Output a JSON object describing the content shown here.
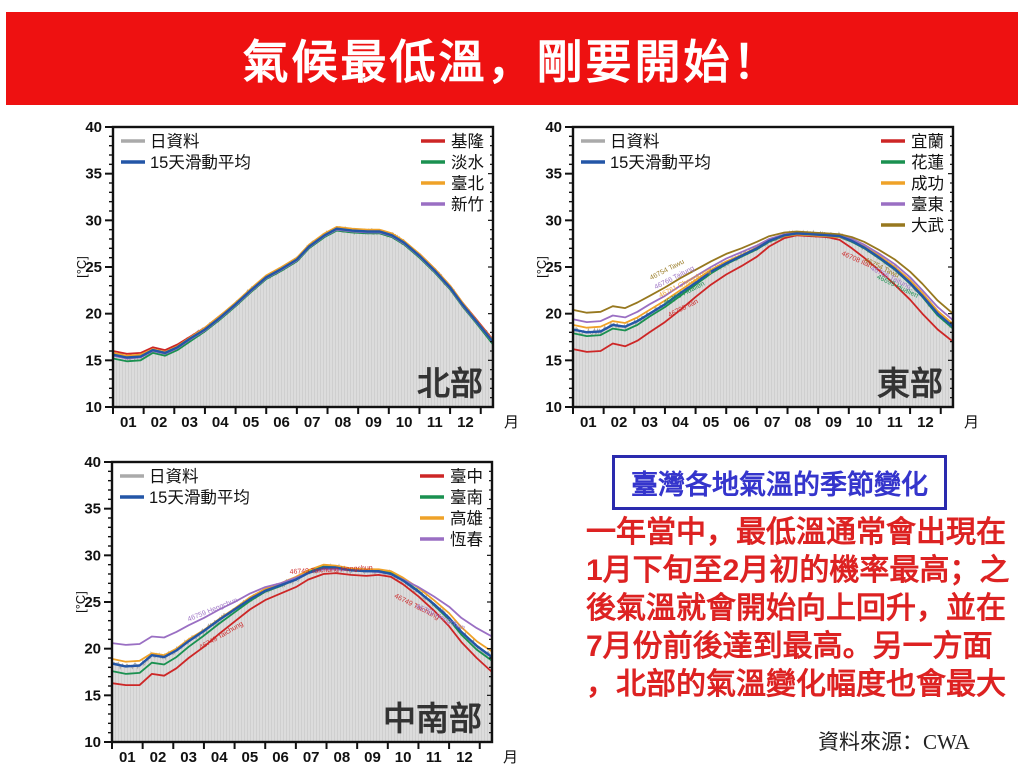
{
  "banner": {
    "title": "氣候最低溫，剛要開始！",
    "bg_color": "#ee1111",
    "fg_color": "#ffffff"
  },
  "info_box": {
    "label": "臺灣各地氣溫的季節變化",
    "border_color": "#2a2aae",
    "fg_color": "#3535cc"
  },
  "description": {
    "text": "一年當中，最低溫通常會出現在1月下旬至2月初的機率最高；之後氣溫就會開始向上回升，並在7月份前後達到最高。另一方面，北部的氣溫變化幅度也會最大",
    "fg_color": "#dd2222"
  },
  "source": {
    "prefix": "資料來源：",
    "value": "CWA"
  },
  "legend_common": [
    {
      "label": "日資料",
      "color": "#aaaaaa"
    },
    {
      "label": "15天滑動平均",
      "color": "#2356a7"
    }
  ],
  "axis": {
    "ylabel": "[°C]",
    "xlabel": "月",
    "yticks": [
      10,
      15,
      20,
      25,
      30,
      35,
      40
    ],
    "xticklabels": [
      "01",
      "02",
      "03",
      "04",
      "05",
      "06",
      "07",
      "08",
      "09",
      "10",
      "11",
      "12"
    ],
    "ylim": [
      10,
      40
    ],
    "xlim": [
      0,
      12.4
    ]
  },
  "colors": {
    "avg": "#2356a7",
    "daily": "#ababab",
    "fill": "#dcdcdc",
    "fill_stripe": "#cfcfcf",
    "frame": "#111111",
    "region_label": "#333333"
  },
  "chart_data": [
    {
      "type": "line",
      "region": "北部",
      "x": [
        0,
        0.45,
        0.9,
        1.3,
        1.7,
        2.1,
        2.5,
        3,
        3.5,
        4,
        4.5,
        5,
        5.5,
        6,
        6.4,
        6.9,
        7.3,
        7.8,
        8.3,
        8.7,
        9.1,
        9.5,
        10,
        10.5,
        11,
        11.4,
        11.9,
        12.4
      ],
      "avg": [
        15.6,
        15.3,
        15.4,
        16.1,
        15.8,
        16.4,
        17.3,
        18.3,
        19.6,
        21.0,
        22.5,
        23.9,
        24.8,
        25.8,
        27.2,
        28.4,
        29.1,
        28.9,
        28.8,
        28.8,
        28.4,
        27.6,
        26.2,
        24.6,
        22.8,
        21.0,
        19.0,
        17.0
      ],
      "series": [
        {
          "name": "基隆",
          "color": "#cd2626",
          "values": [
            16.0,
            15.7,
            15.8,
            16.4,
            16.1,
            16.7,
            17.5,
            18.5,
            19.8,
            21.1,
            22.6,
            24.0,
            24.9,
            25.9,
            27.3,
            28.5,
            29.2,
            29.0,
            28.9,
            28.9,
            28.5,
            27.7,
            26.4,
            24.8,
            23.0,
            21.2,
            19.2,
            17.2
          ]
        },
        {
          "name": "淡水",
          "color": "#1a9150",
          "values": [
            15.2,
            14.9,
            15.0,
            15.8,
            15.5,
            16.1,
            17.0,
            18.1,
            19.4,
            20.8,
            22.3,
            23.7,
            24.6,
            25.6,
            27.0,
            28.2,
            28.9,
            28.7,
            28.6,
            28.6,
            28.2,
            27.4,
            26.0,
            24.4,
            22.6,
            20.8,
            18.8,
            16.7
          ]
        },
        {
          "name": "臺北",
          "color": "#efa228",
          "values": [
            15.8,
            15.5,
            15.6,
            16.2,
            15.9,
            16.5,
            17.4,
            18.5,
            19.8,
            21.2,
            22.7,
            24.1,
            25.0,
            26.0,
            27.4,
            28.6,
            29.3,
            29.1,
            29.0,
            29.0,
            28.6,
            27.8,
            26.4,
            24.8,
            23.0,
            21.2,
            19.1,
            17.1
          ]
        },
        {
          "name": "新竹",
          "color": "#9a6fc3",
          "values": [
            15.5,
            15.2,
            15.3,
            16.0,
            15.7,
            16.3,
            17.2,
            18.2,
            19.5,
            20.9,
            22.4,
            23.8,
            24.7,
            25.7,
            27.1,
            28.3,
            29.0,
            28.8,
            28.7,
            28.7,
            28.3,
            27.5,
            26.1,
            24.5,
            22.7,
            20.9,
            18.9,
            16.9
          ]
        }
      ],
      "annotations": []
    },
    {
      "type": "line",
      "region": "東部",
      "x": [
        0,
        0.45,
        0.9,
        1.3,
        1.7,
        2.1,
        2.5,
        3,
        3.5,
        4,
        4.5,
        5,
        5.5,
        6,
        6.4,
        6.9,
        7.3,
        7.8,
        8.3,
        8.7,
        9.1,
        9.5,
        10,
        10.5,
        11,
        11.4,
        11.9,
        12.4
      ],
      "avg": [
        18.3,
        18.0,
        18.1,
        18.8,
        18.6,
        19.2,
        20.0,
        21.0,
        22.2,
        23.3,
        24.5,
        25.4,
        26.2,
        27.0,
        27.8,
        28.4,
        28.6,
        28.5,
        28.4,
        28.3,
        27.8,
        27.1,
        26.0,
        24.8,
        23.3,
        21.9,
        20.0,
        18.6
      ],
      "series": [
        {
          "name": "宜蘭",
          "color": "#cd2626",
          "values": [
            16.2,
            15.9,
            16.0,
            16.8,
            16.5,
            17.1,
            18.0,
            19.1,
            20.4,
            21.8,
            23.1,
            24.2,
            25.1,
            26.1,
            27.2,
            28.1,
            28.4,
            28.3,
            28.2,
            27.9,
            27.0,
            26.0,
            24.6,
            23.1,
            21.5,
            20.0,
            18.3,
            17.0
          ]
        },
        {
          "name": "花蓮",
          "color": "#1a9150",
          "values": [
            17.9,
            17.6,
            17.7,
            18.4,
            18.2,
            18.8,
            19.7,
            20.7,
            21.9,
            23.1,
            24.3,
            25.3,
            26.1,
            26.9,
            27.7,
            28.3,
            28.5,
            28.4,
            28.3,
            28.2,
            27.7,
            27.0,
            25.9,
            24.7,
            23.2,
            21.8,
            19.8,
            18.4
          ]
        },
        {
          "name": "成功",
          "color": "#efa228",
          "values": [
            18.8,
            18.5,
            18.6,
            19.2,
            19.0,
            19.6,
            20.4,
            21.4,
            22.5,
            23.6,
            24.7,
            25.6,
            26.3,
            27.1,
            27.8,
            28.3,
            28.5,
            28.4,
            28.3,
            28.2,
            27.8,
            27.2,
            26.2,
            25.0,
            23.6,
            22.2,
            20.3,
            18.9
          ]
        },
        {
          "name": "臺東",
          "color": "#9a6fc3",
          "values": [
            19.4,
            19.1,
            19.2,
            19.8,
            19.6,
            20.2,
            21.0,
            21.9,
            23.0,
            24.0,
            25.0,
            25.9,
            26.6,
            27.3,
            28.0,
            28.5,
            28.7,
            28.6,
            28.5,
            28.4,
            28.0,
            27.4,
            26.4,
            25.3,
            23.9,
            22.5,
            20.7,
            19.3
          ]
        },
        {
          "name": "大武",
          "color": "#97781f",
          "values": [
            20.4,
            20.1,
            20.2,
            20.8,
            20.6,
            21.2,
            21.9,
            22.8,
            23.8,
            24.7,
            25.6,
            26.4,
            27.0,
            27.7,
            28.3,
            28.7,
            28.8,
            28.7,
            28.6,
            28.5,
            28.2,
            27.7,
            26.8,
            25.8,
            24.5,
            23.2,
            21.4,
            20.0
          ]
        }
      ],
      "annotations": [
        {
          "text": "46754 Tawu",
          "color": "#97781f",
          "x": 2.55,
          "y": 23.6,
          "rot": -27
        },
        {
          "text": "46766 Taitung",
          "color": "#9a6fc3",
          "x": 2.7,
          "y": 22.6,
          "rot": -27
        },
        {
          "text": "46761 Chengkung",
          "color": "#efa228",
          "x": 2.85,
          "y": 21.7,
          "rot": -27
        },
        {
          "text": "46699 Hualien",
          "color": "#1a9150",
          "x": 3.0,
          "y": 20.9,
          "rot": -27
        },
        {
          "text": "46708 Ilan",
          "color": "#cd2626",
          "x": 3.15,
          "y": 19.6,
          "rot": -27
        },
        {
          "text": "46708 Ilan",
          "color": "#cd2626",
          "x": 8.75,
          "y": 26.3,
          "rot": 24
        },
        {
          "text": "46754 Tawu",
          "color": "#97781f",
          "x": 9.5,
          "y": 25.6,
          "rot": 26
        },
        {
          "text": "46766 Taitung",
          "color": "#9a6fc3",
          "x": 9.7,
          "y": 24.7,
          "rot": 26
        },
        {
          "text": "46699 Hualien",
          "color": "#1a9150",
          "x": 9.9,
          "y": 23.8,
          "rot": 26
        }
      ]
    },
    {
      "type": "line",
      "region": "中南部",
      "x": [
        0,
        0.45,
        0.9,
        1.3,
        1.7,
        2.1,
        2.5,
        3,
        3.5,
        4,
        4.5,
        5,
        5.5,
        6,
        6.4,
        6.9,
        7.3,
        7.8,
        8.3,
        8.7,
        9.1,
        9.5,
        10,
        10.5,
        11,
        11.4,
        11.9,
        12.4
      ],
      "avg": [
        18.4,
        18.1,
        18.2,
        19.3,
        19.1,
        19.8,
        20.8,
        21.9,
        23.1,
        24.2,
        25.3,
        26.2,
        26.8,
        27.4,
        28.1,
        28.7,
        28.7,
        28.4,
        28.3,
        28.3,
        28.0,
        27.3,
        26.1,
        24.8,
        23.3,
        21.8,
        20.3,
        19.1
      ],
      "series": [
        {
          "name": "臺中",
          "color": "#cd2626",
          "values": [
            16.3,
            16.1,
            16.1,
            17.3,
            17.1,
            17.9,
            19.0,
            20.2,
            21.6,
            22.9,
            24.2,
            25.2,
            25.9,
            26.6,
            27.4,
            28.0,
            28.1,
            27.9,
            27.8,
            27.9,
            27.7,
            26.9,
            25.6,
            24.1,
            22.4,
            20.7,
            19.0,
            17.5
          ]
        },
        {
          "name": "臺南",
          "color": "#1a9150",
          "values": [
            17.6,
            17.3,
            17.4,
            18.5,
            18.3,
            19.1,
            20.2,
            21.4,
            22.7,
            23.9,
            25.1,
            26.1,
            26.7,
            27.4,
            28.2,
            28.8,
            28.8,
            28.5,
            28.4,
            28.4,
            28.2,
            27.4,
            26.2,
            24.7,
            23.1,
            21.5,
            19.9,
            18.7
          ]
        },
        {
          "name": "高雄",
          "color": "#efa228",
          "values": [
            18.9,
            18.6,
            18.7,
            19.5,
            19.3,
            20.0,
            21.0,
            22.0,
            23.2,
            24.3,
            25.5,
            26.4,
            27.0,
            27.7,
            28.4,
            29.0,
            28.9,
            28.6,
            28.5,
            28.5,
            28.3,
            27.6,
            26.5,
            25.2,
            23.8,
            22.3,
            20.8,
            19.7
          ]
        },
        {
          "name": "恆春",
          "color": "#9a6fc3",
          "values": [
            20.6,
            20.4,
            20.5,
            21.3,
            21.2,
            21.8,
            22.5,
            23.3,
            24.2,
            25.0,
            25.9,
            26.6,
            27.0,
            27.6,
            28.1,
            28.5,
            28.5,
            28.4,
            28.3,
            28.2,
            28.0,
            27.4,
            26.6,
            25.6,
            24.5,
            23.3,
            22.2,
            21.3
          ]
        }
      ],
      "annotations": [
        {
          "text": "46759 Hengchun",
          "color": "#9a6fc3",
          "x": 2.5,
          "y": 22.9,
          "rot": -22
        },
        {
          "text": "46749 Taichung",
          "color": "#cd2626",
          "x": 2.9,
          "y": 19.9,
          "rot": -30
        },
        {
          "text": "46749 Taichung Hengchun",
          "color": "#cd2626",
          "x": 5.8,
          "y": 28.0,
          "rot": -3
        },
        {
          "text": "46749 Taichung",
          "color": "#cd2626",
          "x": 9.2,
          "y": 25.5,
          "rot": 27
        },
        {
          "text": "46759 Hengchun",
          "color": "#9a6fc3",
          "x": 9.9,
          "y": 24.4,
          "rot": 25
        }
      ]
    }
  ]
}
